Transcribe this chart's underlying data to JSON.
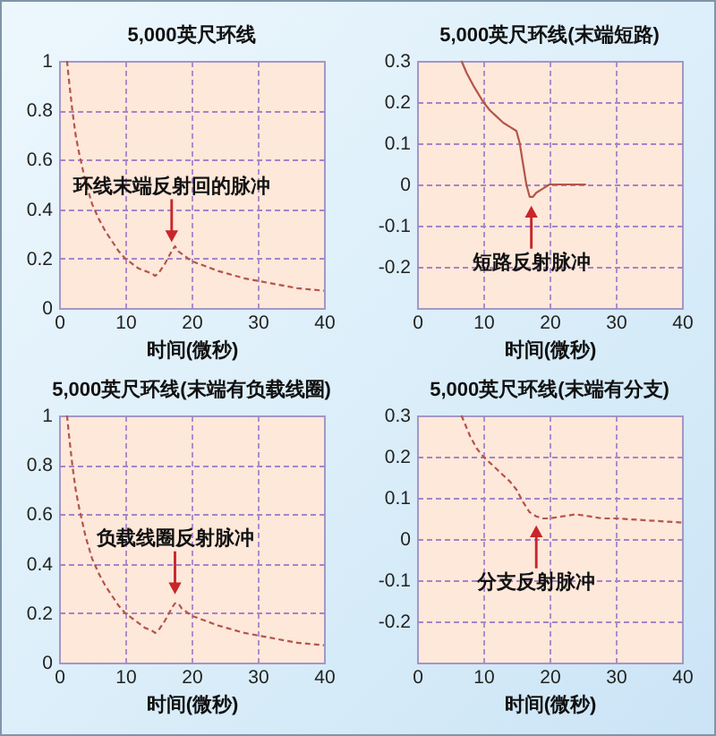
{
  "chart_data": [
    {
      "type": "line",
      "title": "5,000英尺环线",
      "xlabel": "时间(微秒)",
      "color": "#b4554b",
      "line_style": "dashed",
      "grid": true,
      "xlim": [
        0,
        40
      ],
      "xticks": [
        0,
        10,
        20,
        30,
        40
      ],
      "ylim": [
        0,
        1
      ],
      "yticks": [
        0,
        0.2,
        0.4,
        0.6,
        0.8,
        1
      ],
      "x": [
        1.2,
        1.5,
        2,
        2.5,
        3,
        3.5,
        4,
        5,
        6,
        7,
        8,
        9,
        10,
        11,
        12,
        13,
        14,
        14.5,
        15,
        16,
        17,
        17.5,
        18,
        19,
        20,
        22,
        24,
        26,
        28,
        30,
        32,
        34,
        36,
        38,
        40
      ],
      "values": [
        1,
        0.92,
        0.8,
        0.7,
        0.63,
        0.57,
        0.51,
        0.42,
        0.36,
        0.31,
        0.27,
        0.23,
        0.2,
        0.18,
        0.16,
        0.15,
        0.14,
        0.13,
        0.14,
        0.18,
        0.23,
        0.25,
        0.23,
        0.21,
        0.19,
        0.17,
        0.15,
        0.135,
        0.12,
        0.11,
        0.1,
        0.09,
        0.08,
        0.075,
        0.07
      ],
      "annotations": [
        {
          "text": "环线末端反射回的脉冲",
          "x": 17,
          "y": 0.23
        }
      ]
    },
    {
      "type": "line",
      "title": "5,000英尺环线(末端短路)",
      "xlabel": "时间(微秒)",
      "color": "#b4554b",
      "line_style": "solid",
      "grid": true,
      "xlim": [
        0,
        40
      ],
      "xticks": [
        0,
        10,
        20,
        30,
        40
      ],
      "ylim": [
        -0.3,
        0.3
      ],
      "yticks": [
        -0.2,
        -0.1,
        0,
        0.1,
        0.2,
        0.3
      ],
      "x": [
        6.7,
        7.5,
        8.5,
        10,
        11,
        12,
        13,
        14,
        15,
        15.5,
        16,
        16.5,
        17,
        17.5,
        18,
        19,
        20,
        22,
        25.5
      ],
      "values": [
        0.3,
        0.27,
        0.24,
        0.2,
        0.18,
        0.165,
        0.15,
        0.14,
        0.13,
        0.1,
        0.05,
        0,
        -0.03,
        -0.03,
        -0.02,
        -0.01,
        0,
        0,
        0
      ],
      "annotations": [
        {
          "text": "短路反射脉冲",
          "x": 17.25,
          "y": -0.03
        }
      ]
    },
    {
      "type": "line",
      "title": "5,000英尺环线(末端有负载线圈)",
      "xlabel": "时间(微秒)",
      "color": "#b4554b",
      "line_style": "dashed",
      "grid": true,
      "xlim": [
        0,
        40
      ],
      "xticks": [
        0,
        10,
        20,
        30,
        40
      ],
      "ylim": [
        0,
        1
      ],
      "yticks": [
        0,
        0.2,
        0.4,
        0.6,
        0.8,
        1
      ],
      "x": [
        1.2,
        1.5,
        2,
        2.5,
        3,
        3.5,
        4,
        5,
        6,
        7,
        8,
        9,
        10,
        11,
        12,
        13,
        14,
        14.5,
        15,
        16,
        17,
        17.5,
        18,
        18.5,
        19,
        20,
        22,
        24,
        26,
        28,
        30,
        32,
        34,
        36,
        38,
        40
      ],
      "values": [
        1,
        0.92,
        0.8,
        0.7,
        0.63,
        0.57,
        0.51,
        0.42,
        0.36,
        0.31,
        0.27,
        0.23,
        0.2,
        0.18,
        0.16,
        0.14,
        0.13,
        0.12,
        0.13,
        0.17,
        0.22,
        0.24,
        0.24,
        0.22,
        0.21,
        0.19,
        0.17,
        0.15,
        0.135,
        0.12,
        0.11,
        0.1,
        0.09,
        0.08,
        0.075,
        0.07
      ],
      "annotations": [
        {
          "text": "负载线圈反射脉冲",
          "x": 17.5,
          "y": 0.24
        }
      ]
    },
    {
      "type": "line",
      "title": "5,000英尺环线(末端有分支)",
      "xlabel": "时间(微秒)",
      "color": "#b4554b",
      "line_style": "dashed",
      "grid": true,
      "xlim": [
        0,
        40
      ],
      "xticks": [
        0,
        10,
        20,
        30,
        40
      ],
      "ylim": [
        -0.3,
        0.3
      ],
      "yticks": [
        -0.2,
        -0.1,
        0,
        0.1,
        0.2,
        0.3
      ],
      "x": [
        6.7,
        8,
        9,
        10,
        11,
        12,
        13,
        14,
        15,
        16,
        17,
        18,
        19,
        20,
        22,
        24,
        26,
        28,
        30,
        35,
        40
      ],
      "values": [
        0.3,
        0.25,
        0.22,
        0.2,
        0.185,
        0.17,
        0.155,
        0.14,
        0.12,
        0.09,
        0.065,
        0.055,
        0.05,
        0.05,
        0.055,
        0.06,
        0.055,
        0.05,
        0.05,
        0.045,
        0.04
      ],
      "annotations": [
        {
          "text": "分支反射脉冲",
          "x": 18,
          "y": 0.055
        }
      ]
    }
  ]
}
